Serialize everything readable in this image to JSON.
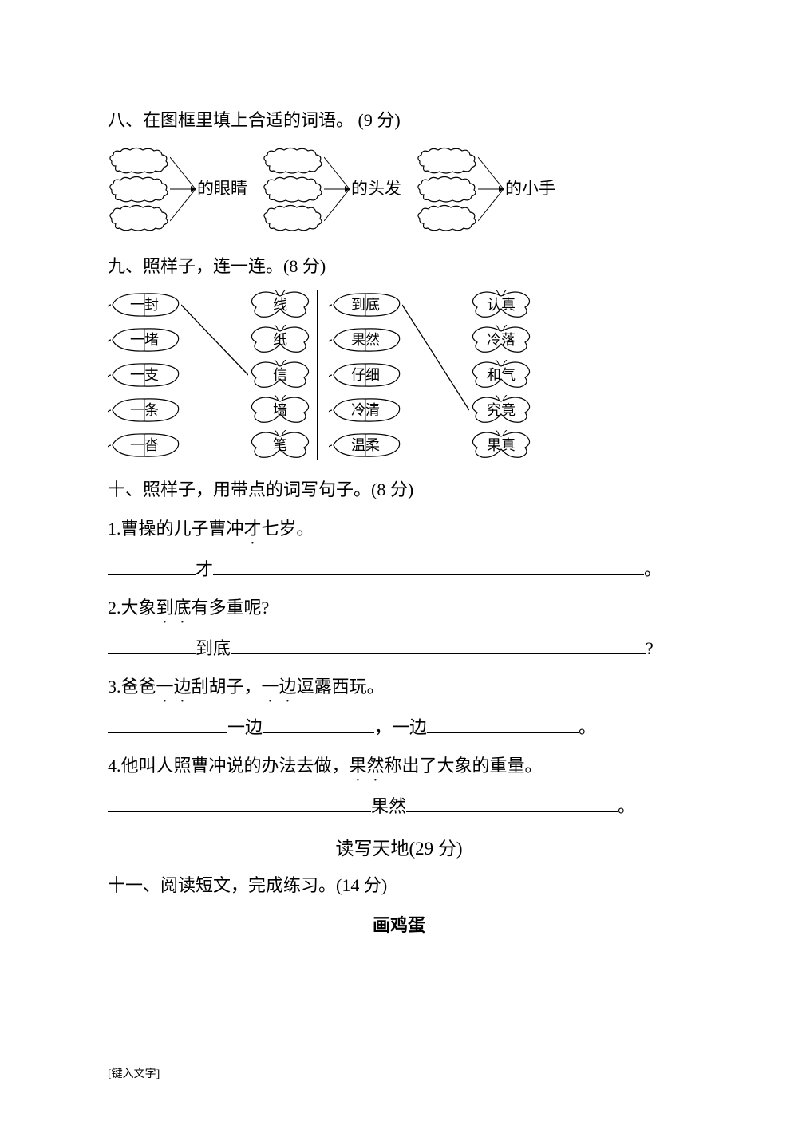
{
  "section8": {
    "heading": "八、在图框里填上合适的词语。 (9 分)",
    "groups": [
      {
        "label": "的眼睛"
      },
      {
        "label": "的头发"
      },
      {
        "label": "的小手"
      }
    ]
  },
  "section9": {
    "heading": "九、照样子，连一连。(8 分)",
    "left": {
      "leaves": [
        "一封",
        "一堵",
        "一支",
        "一条",
        "一沓"
      ],
      "butterflies": [
        "线",
        "纸",
        "信",
        "墙",
        "笔"
      ],
      "connections": [
        [
          0,
          2
        ]
      ]
    },
    "right": {
      "leaves": [
        "到底",
        "果然",
        "仔细",
        "冷清",
        "温柔"
      ],
      "butterflies": [
        "认真",
        "冷落",
        "和气",
        "究竟",
        "果真"
      ],
      "connections": [
        [
          0,
          3
        ]
      ]
    }
  },
  "section10": {
    "heading": "十、照样子，用带点的词写句子。(8 分)",
    "items": [
      {
        "idx": "1",
        "example_parts": [
          "曹操的儿子曹冲",
          "才",
          "七岁。"
        ],
        "dot_indices": [
          1
        ],
        "fill": {
          "pre_w": 110,
          "mid": "才",
          "post_w": 540,
          "end": "。"
        }
      },
      {
        "idx": "2",
        "example_parts": [
          "大象",
          "到底",
          "有多重呢?"
        ],
        "dot_indices": [
          1
        ],
        "fill": {
          "pre_w": 110,
          "mid": "到底",
          "post_w": 520,
          "end": "?"
        }
      },
      {
        "idx": "3",
        "example_parts": [
          "爸爸",
          "一边",
          "刮胡子，",
          "一边",
          "逗露西玩。"
        ],
        "dot_indices": [
          1,
          3
        ],
        "fill_double": {
          "a_w": 150,
          "m1": "一边",
          "b_w": 140,
          "sep": "，",
          "m2": "一边",
          "c_w": 190,
          "end": "。"
        }
      },
      {
        "idx": "4",
        "example_parts": [
          "他叫人照曹冲说的办法去做，",
          "果然",
          "称出了大象的重量。"
        ],
        "dot_indices": [
          1
        ],
        "fill": {
          "pre_w": 330,
          "mid": "果然",
          "post_w": 265,
          "end": "。"
        }
      }
    ]
  },
  "reading_section": {
    "title": "读写天地(29 分)",
    "section11_heading": "十一、阅读短文，完成练习。(14 分)",
    "passage_title": "画鸡蛋"
  },
  "footer": "[键入文字]",
  "colors": {
    "stroke": "#000000",
    "background": "#ffffff"
  }
}
